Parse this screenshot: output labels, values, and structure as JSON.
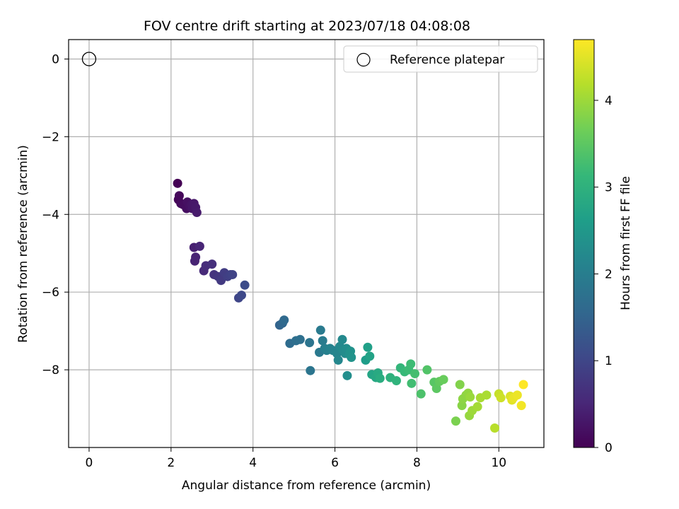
{
  "chart_data": {
    "type": "scatter",
    "title": "FOV centre drift starting at 2023/07/18 04:08:08",
    "xlabel": "Angular distance from reference (arcmin)",
    "ylabel": "Rotation from reference (arcmin)",
    "xlim": [
      -0.5,
      11.1
    ],
    "ylim": [
      -10.0,
      0.5
    ],
    "xticks": [
      0,
      2,
      4,
      6,
      8,
      10
    ],
    "yticks": [
      0,
      -2,
      -4,
      -6,
      -8
    ],
    "xtick_labels": [
      "0",
      "2",
      "4",
      "6",
      "8",
      "10"
    ],
    "ytick_labels": [
      "0",
      "−2",
      "−4",
      "−6",
      "−8"
    ],
    "grid": true,
    "legend": {
      "position": "top-right",
      "entries": [
        "Reference platepar"
      ]
    },
    "reference": {
      "name": "Reference platepar",
      "x": 0.0,
      "y": 0.0
    },
    "colorbar": {
      "label": "Hours from first FF file",
      "colormap": "viridis",
      "range": [
        0,
        4.7
      ],
      "ticks": [
        0,
        1,
        2,
        3,
        4
      ],
      "tick_labels": [
        "0",
        "1",
        "2",
        "3",
        "4"
      ]
    },
    "points": [
      [
        2.16,
        -3.2,
        0.0
      ],
      [
        2.18,
        -3.62,
        0.05
      ],
      [
        2.2,
        -3.52,
        0.08
      ],
      [
        2.24,
        -3.72,
        0.12
      ],
      [
        2.3,
        -3.75,
        0.15
      ],
      [
        2.38,
        -3.85,
        0.18
      ],
      [
        2.4,
        -3.68,
        0.2
      ],
      [
        2.46,
        -3.8,
        0.22
      ],
      [
        2.5,
        -3.75,
        0.25
      ],
      [
        2.52,
        -3.85,
        0.27
      ],
      [
        2.56,
        -3.72,
        0.3
      ],
      [
        2.6,
        -3.82,
        0.32
      ],
      [
        2.63,
        -3.95,
        0.35
      ],
      [
        2.56,
        -4.85,
        0.42
      ],
      [
        2.6,
        -5.1,
        0.45
      ],
      [
        2.58,
        -5.2,
        0.47
      ],
      [
        2.7,
        -4.82,
        0.5
      ],
      [
        2.8,
        -5.45,
        0.55
      ],
      [
        2.85,
        -5.32,
        0.6
      ],
      [
        3.0,
        -5.28,
        0.65
      ],
      [
        3.05,
        -5.55,
        0.7
      ],
      [
        3.15,
        -5.6,
        0.75
      ],
      [
        3.22,
        -5.7,
        0.8
      ],
      [
        3.3,
        -5.5,
        0.85
      ],
      [
        3.38,
        -5.6,
        0.88
      ],
      [
        3.45,
        -5.55,
        0.92
      ],
      [
        3.5,
        -5.55,
        0.95
      ],
      [
        3.65,
        -6.15,
        1.0
      ],
      [
        3.72,
        -6.08,
        1.05
      ],
      [
        3.8,
        -5.82,
        1.1
      ],
      [
        4.65,
        -6.85,
        1.5
      ],
      [
        4.72,
        -6.8,
        1.55
      ],
      [
        4.76,
        -6.72,
        1.6
      ],
      [
        4.9,
        -7.32,
        1.65
      ],
      [
        5.05,
        -7.25,
        1.7
      ],
      [
        5.15,
        -7.22,
        1.72
      ],
      [
        5.38,
        -7.3,
        1.8
      ],
      [
        5.4,
        -8.02,
        1.82
      ],
      [
        5.62,
        -7.55,
        1.9
      ],
      [
        5.65,
        -6.98,
        1.92
      ],
      [
        5.7,
        -7.25,
        1.95
      ],
      [
        5.75,
        -7.45,
        2.0
      ],
      [
        5.8,
        -7.5,
        2.05
      ],
      [
        5.88,
        -7.45,
        2.08
      ],
      [
        5.95,
        -7.5,
        2.1
      ],
      [
        6.05,
        -7.58,
        2.15
      ],
      [
        6.08,
        -7.75,
        2.18
      ],
      [
        6.12,
        -7.4,
        2.2
      ],
      [
        6.18,
        -7.22,
        2.22
      ],
      [
        6.2,
        -7.5,
        2.25
      ],
      [
        6.25,
        -7.58,
        2.28
      ],
      [
        6.28,
        -7.45,
        2.3
      ],
      [
        6.3,
        -8.15,
        2.32
      ],
      [
        6.35,
        -7.6,
        2.35
      ],
      [
        6.38,
        -7.52,
        2.38
      ],
      [
        6.4,
        -7.68,
        2.4
      ],
      [
        6.75,
        -7.75,
        2.6
      ],
      [
        6.8,
        -7.42,
        2.65
      ],
      [
        6.85,
        -7.65,
        2.7
      ],
      [
        6.9,
        -8.12,
        2.75
      ],
      [
        7.0,
        -8.2,
        2.8
      ],
      [
        7.05,
        -8.08,
        2.85
      ],
      [
        7.1,
        -8.22,
        2.9
      ],
      [
        7.35,
        -8.2,
        3.0
      ],
      [
        7.5,
        -8.28,
        3.05
      ],
      [
        7.6,
        -7.95,
        3.1
      ],
      [
        7.7,
        -8.05,
        3.15
      ],
      [
        7.8,
        -8.0,
        3.2
      ],
      [
        7.85,
        -7.85,
        3.22
      ],
      [
        7.87,
        -8.35,
        3.25
      ],
      [
        7.95,
        -8.1,
        3.28
      ],
      [
        8.1,
        -8.62,
        3.35
      ],
      [
        8.25,
        -8.0,
        3.4
      ],
      [
        8.42,
        -8.32,
        3.45
      ],
      [
        8.48,
        -8.48,
        3.5
      ],
      [
        8.55,
        -8.3,
        3.55
      ],
      [
        8.65,
        -8.25,
        3.6
      ],
      [
        8.95,
        -9.32,
        3.75
      ],
      [
        9.05,
        -8.38,
        3.8
      ],
      [
        9.1,
        -8.92,
        3.85
      ],
      [
        9.12,
        -8.75,
        3.88
      ],
      [
        9.2,
        -8.65,
        3.9
      ],
      [
        9.25,
        -8.6,
        3.92
      ],
      [
        9.28,
        -9.18,
        3.95
      ],
      [
        9.3,
        -8.7,
        3.97
      ],
      [
        9.35,
        -9.05,
        4.0
      ],
      [
        9.48,
        -8.95,
        4.05
      ],
      [
        9.55,
        -8.72,
        4.08
      ],
      [
        9.7,
        -8.65,
        4.1
      ],
      [
        9.9,
        -9.5,
        4.2
      ],
      [
        10.0,
        -8.62,
        4.3
      ],
      [
        10.05,
        -8.72,
        4.35
      ],
      [
        10.28,
        -8.68,
        4.45
      ],
      [
        10.32,
        -8.78,
        4.5
      ],
      [
        10.36,
        -8.72,
        4.55
      ],
      [
        10.45,
        -8.65,
        4.58
      ],
      [
        10.55,
        -8.92,
        4.62
      ],
      [
        10.6,
        -8.38,
        4.7
      ]
    ]
  }
}
